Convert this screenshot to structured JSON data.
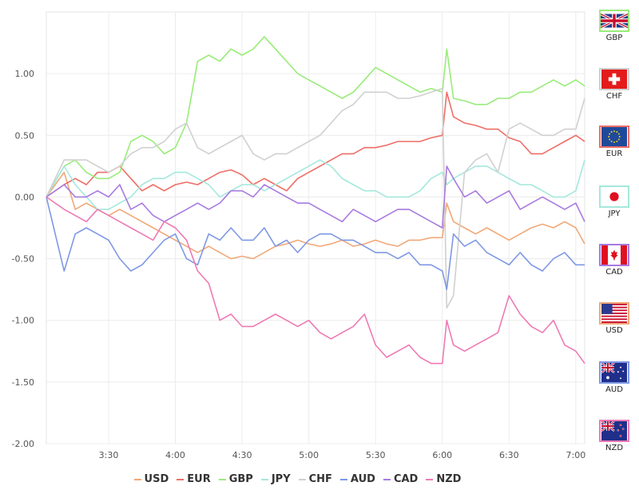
{
  "chart_data": {
    "type": "line",
    "y_ticks": [
      "1.00",
      "0.50",
      "0.00",
      "-0.50",
      "-1.00",
      "-1.50",
      "-2.00"
    ],
    "y_tick_values": [
      1.0,
      0.5,
      0.0,
      -0.5,
      -1.0,
      -1.5,
      -2.0
    ],
    "x_ticks": [
      "3:30",
      "4:00",
      "4:30",
      "5:00",
      "5:30",
      "6:00",
      "6:30",
      "7:00"
    ],
    "x_tick_values": [
      "3:30",
      "4:00",
      "4:30",
      "5:00",
      "5:30",
      "6:00",
      "6:30",
      "7:00"
    ],
    "xlim": [
      "3:02",
      "7:04"
    ],
    "ylim": [
      -2.0,
      1.5
    ],
    "grid": true,
    "legend_position": "bottom",
    "x": [
      "3:02",
      "3:10",
      "3:15",
      "3:20",
      "3:25",
      "3:30",
      "3:35",
      "3:40",
      "3:45",
      "3:50",
      "3:55",
      "4:00",
      "4:05",
      "4:10",
      "4:15",
      "4:20",
      "4:25",
      "4:30",
      "4:35",
      "4:40",
      "4:45",
      "4:50",
      "4:55",
      "5:00",
      "5:05",
      "5:10",
      "5:15",
      "5:20",
      "5:25",
      "5:30",
      "5:35",
      "5:40",
      "5:45",
      "5:50",
      "5:55",
      "6:00",
      "6:02",
      "6:05",
      "6:10",
      "6:15",
      "6:20",
      "6:25",
      "6:30",
      "6:35",
      "6:40",
      "6:45",
      "6:50",
      "6:55",
      "7:00",
      "7:04"
    ],
    "series": [
      {
        "name": "USD",
        "color": "#f0a878",
        "values": [
          0.0,
          0.2,
          -0.1,
          -0.05,
          -0.1,
          -0.15,
          -0.1,
          -0.15,
          -0.2,
          -0.25,
          -0.3,
          -0.35,
          -0.4,
          -0.45,
          -0.4,
          -0.45,
          -0.5,
          -0.48,
          -0.5,
          -0.45,
          -0.4,
          -0.38,
          -0.35,
          -0.38,
          -0.4,
          -0.38,
          -0.35,
          -0.4,
          -0.38,
          -0.35,
          -0.38,
          -0.4,
          -0.35,
          -0.35,
          -0.33,
          -0.33,
          -0.05,
          -0.2,
          -0.25,
          -0.3,
          -0.25,
          -0.3,
          -0.35,
          -0.3,
          -0.25,
          -0.22,
          -0.25,
          -0.2,
          -0.25,
          -0.38
        ]
      },
      {
        "name": "EUR",
        "color": "#ee6e66",
        "values": [
          0.0,
          0.1,
          0.15,
          0.1,
          0.2,
          0.2,
          0.25,
          0.15,
          0.05,
          0.1,
          0.05,
          0.1,
          0.12,
          0.1,
          0.15,
          0.2,
          0.22,
          0.18,
          0.1,
          0.15,
          0.1,
          0.05,
          0.15,
          0.2,
          0.25,
          0.3,
          0.35,
          0.35,
          0.4,
          0.4,
          0.42,
          0.45,
          0.45,
          0.45,
          0.48,
          0.5,
          0.85,
          0.65,
          0.6,
          0.58,
          0.55,
          0.55,
          0.48,
          0.45,
          0.35,
          0.35,
          0.4,
          0.45,
          0.5,
          0.45
        ]
      },
      {
        "name": "GBP",
        "color": "#98ec78",
        "values": [
          0.0,
          0.25,
          0.3,
          0.2,
          0.15,
          0.15,
          0.2,
          0.45,
          0.5,
          0.45,
          0.35,
          0.4,
          0.6,
          1.1,
          1.15,
          1.1,
          1.2,
          1.15,
          1.2,
          1.3,
          1.2,
          1.1,
          1.0,
          0.95,
          0.9,
          0.85,
          0.8,
          0.85,
          0.95,
          1.05,
          1.0,
          0.95,
          0.9,
          0.85,
          0.88,
          0.85,
          1.2,
          0.8,
          0.78,
          0.75,
          0.75,
          0.8,
          0.8,
          0.85,
          0.85,
          0.9,
          0.95,
          0.9,
          0.95,
          0.9
        ]
      },
      {
        "name": "JPY",
        "color": "#a4e8dc",
        "values": [
          0.0,
          0.25,
          0.1,
          0.0,
          -0.1,
          -0.1,
          -0.05,
          0.0,
          0.1,
          0.15,
          0.15,
          0.2,
          0.2,
          0.15,
          0.1,
          0.0,
          0.05,
          0.1,
          0.1,
          0.05,
          0.1,
          0.15,
          0.2,
          0.25,
          0.3,
          0.25,
          0.15,
          0.1,
          0.05,
          0.05,
          0.0,
          0.0,
          0.0,
          0.05,
          0.15,
          0.2,
          0.1,
          0.15,
          0.2,
          0.25,
          0.25,
          0.2,
          0.15,
          0.1,
          0.1,
          0.05,
          0.0,
          0.0,
          0.05,
          0.3
        ]
      },
      {
        "name": "CHF",
        "color": "#d0d0d0",
        "values": [
          0.0,
          0.3,
          0.3,
          0.3,
          0.25,
          0.2,
          0.25,
          0.35,
          0.4,
          0.4,
          0.45,
          0.55,
          0.6,
          0.4,
          0.35,
          0.4,
          0.45,
          0.5,
          0.35,
          0.3,
          0.35,
          0.35,
          0.4,
          0.45,
          0.5,
          0.6,
          0.7,
          0.75,
          0.85,
          0.85,
          0.85,
          0.8,
          0.8,
          0.82,
          0.85,
          0.88,
          -0.9,
          -0.8,
          0.2,
          0.3,
          0.35,
          0.2,
          0.55,
          0.6,
          0.55,
          0.5,
          0.5,
          0.55,
          0.55,
          0.8
        ]
      },
      {
        "name": "AUD",
        "color": "#7e98e4",
        "values": [
          0.0,
          -0.6,
          -0.3,
          -0.25,
          -0.3,
          -0.35,
          -0.5,
          -0.6,
          -0.55,
          -0.45,
          -0.35,
          -0.3,
          -0.5,
          -0.55,
          -0.3,
          -0.35,
          -0.25,
          -0.35,
          -0.35,
          -0.25,
          -0.4,
          -0.35,
          -0.45,
          -0.35,
          -0.3,
          -0.3,
          -0.35,
          -0.35,
          -0.4,
          -0.45,
          -0.45,
          -0.5,
          -0.45,
          -0.55,
          -0.55,
          -0.6,
          -0.75,
          -0.3,
          -0.4,
          -0.35,
          -0.45,
          -0.5,
          -0.55,
          -0.45,
          -0.55,
          -0.6,
          -0.5,
          -0.45,
          -0.55,
          -0.55
        ]
      },
      {
        "name": "CAD",
        "color": "#a87ae0",
        "values": [
          0.0,
          0.1,
          0.0,
          0.0,
          0.05,
          0.0,
          0.1,
          -0.1,
          -0.05,
          -0.15,
          -0.2,
          -0.15,
          -0.1,
          -0.05,
          -0.1,
          -0.05,
          0.05,
          0.05,
          0.0,
          0.1,
          0.05,
          0.0,
          -0.05,
          -0.05,
          -0.1,
          -0.15,
          -0.2,
          -0.1,
          -0.15,
          -0.2,
          -0.15,
          -0.1,
          -0.1,
          -0.15,
          -0.2,
          -0.25,
          0.25,
          0.15,
          0.0,
          0.05,
          -0.05,
          0.0,
          0.05,
          -0.1,
          -0.05,
          0.0,
          -0.05,
          -0.1,
          -0.05,
          -0.2
        ]
      },
      {
        "name": "NZD",
        "color": "#ee7ab4",
        "values": [
          0.0,
          -0.1,
          -0.15,
          -0.2,
          -0.1,
          -0.15,
          -0.2,
          -0.25,
          -0.3,
          -0.35,
          -0.2,
          -0.25,
          -0.35,
          -0.6,
          -0.7,
          -1.0,
          -0.95,
          -1.05,
          -1.05,
          -1.0,
          -0.95,
          -1.0,
          -1.05,
          -1.0,
          -1.1,
          -1.15,
          -1.1,
          -1.05,
          -0.95,
          -1.2,
          -1.3,
          -1.25,
          -1.2,
          -1.3,
          -1.35,
          -1.35,
          -1.0,
          -1.2,
          -1.25,
          -1.2,
          -1.15,
          -1.1,
          -0.8,
          -0.95,
          -1.05,
          -1.1,
          -1.0,
          -1.2,
          -1.25,
          -1.35
        ]
      }
    ]
  },
  "flags": [
    {
      "code": "GBP",
      "border": "#98ec78"
    },
    {
      "code": "CHF",
      "border": "#d0d0d0"
    },
    {
      "code": "EUR",
      "border": "#ee6e66"
    },
    {
      "code": "JPY",
      "border": "#a4e8dc"
    },
    {
      "code": "CAD",
      "border": "#a87ae0"
    },
    {
      "code": "USD",
      "border": "#f0a878"
    },
    {
      "code": "AUD",
      "border": "#7e98e4"
    },
    {
      "code": "NZD",
      "border": "#ee7ab4"
    }
  ]
}
